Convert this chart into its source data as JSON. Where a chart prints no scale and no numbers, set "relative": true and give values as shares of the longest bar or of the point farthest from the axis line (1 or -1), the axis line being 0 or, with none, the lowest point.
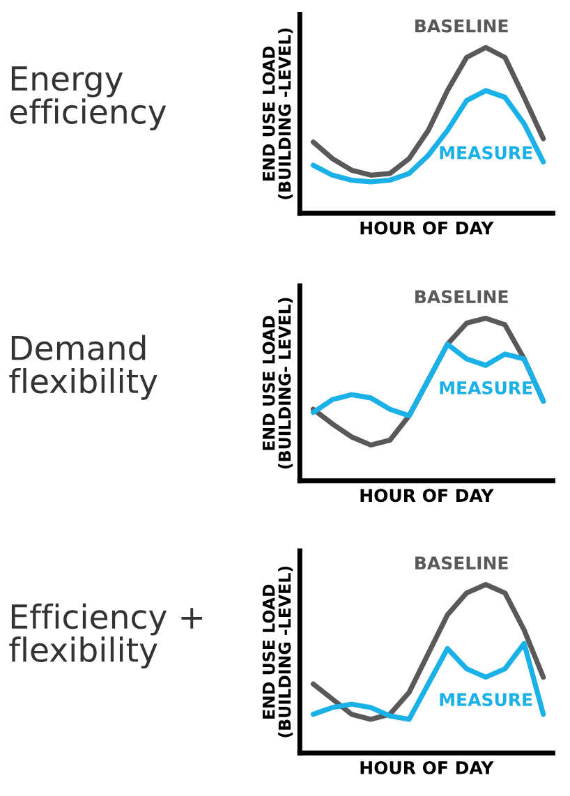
{
  "chart_data": [
    {
      "type": "line",
      "title": "Energy\nefficiency",
      "xlabel": "HOUR OF DAY",
      "ylabel": "END USE LOAD\n(BUILDING -LEVEL)",
      "relative": true,
      "tick_labels": false,
      "grid": false,
      "legend": false,
      "categories": [
        null,
        null,
        null,
        null,
        null,
        null,
        null,
        null,
        null,
        null,
        null,
        null,
        null
      ],
      "series": [
        {
          "name": "BASELINE",
          "color": "#58595b",
          "values": [
            0.43,
            0.33,
            0.26,
            0.23,
            0.24,
            0.33,
            0.5,
            0.74,
            0.94,
            1,
            0.94,
            0.7,
            0.45
          ]
        },
        {
          "name": "MEASURE",
          "color": "#1ab0e8",
          "values": [
            0.29,
            0.23,
            0.2,
            0.19,
            0.2,
            0.24,
            0.35,
            0.5,
            0.68,
            0.74,
            0.7,
            0.54,
            0.31
          ]
        }
      ]
    },
    {
      "type": "line",
      "title": "Demand\nflexibility",
      "xlabel": "HOUR OF DAY",
      "ylabel": "END USE LOAD\n(BUILDING- LEVEL)",
      "relative": true,
      "tick_labels": false,
      "grid": false,
      "legend": false,
      "categories": [
        null,
        null,
        null,
        null,
        null,
        null,
        null,
        null,
        null,
        null,
        null,
        null,
        null
      ],
      "series": [
        {
          "name": "BASELINE",
          "color": "#58595b",
          "values": [
            0.44,
            0.35,
            0.27,
            0.22,
            0.25,
            0.4,
            0.62,
            0.84,
            0.97,
            1,
            0.96,
            0.75,
            0.49
          ]
        },
        {
          "name": "MEASURE",
          "color": "#1ab0e8",
          "values": [
            0.42,
            0.5,
            0.53,
            0.51,
            0.44,
            0.4,
            0.62,
            0.84,
            0.75,
            0.71,
            0.78,
            0.75,
            0.49
          ]
        }
      ]
    },
    {
      "type": "line",
      "title": "Efficiency +\nflexibility",
      "xlabel": "HOUR OF DAY",
      "ylabel": "END USE LOAD\n(BUILDING -LEVEL)",
      "relative": true,
      "tick_labels": false,
      "grid": false,
      "legend": false,
      "categories": [
        null,
        null,
        null,
        null,
        null,
        null,
        null,
        null,
        null,
        null,
        null,
        null,
        null
      ],
      "series": [
        {
          "name": "BASELINE",
          "color": "#58595b",
          "values": [
            0.41,
            0.32,
            0.23,
            0.2,
            0.23,
            0.36,
            0.59,
            0.82,
            0.95,
            1,
            0.95,
            0.73,
            0.45
          ]
        },
        {
          "name": "MEASURE",
          "color": "#1ab0e8",
          "values": [
            0.23,
            0.27,
            0.29,
            0.27,
            0.22,
            0.2,
            0.41,
            0.62,
            0.5,
            0.45,
            0.5,
            0.65,
            0.23
          ]
        }
      ]
    }
  ]
}
